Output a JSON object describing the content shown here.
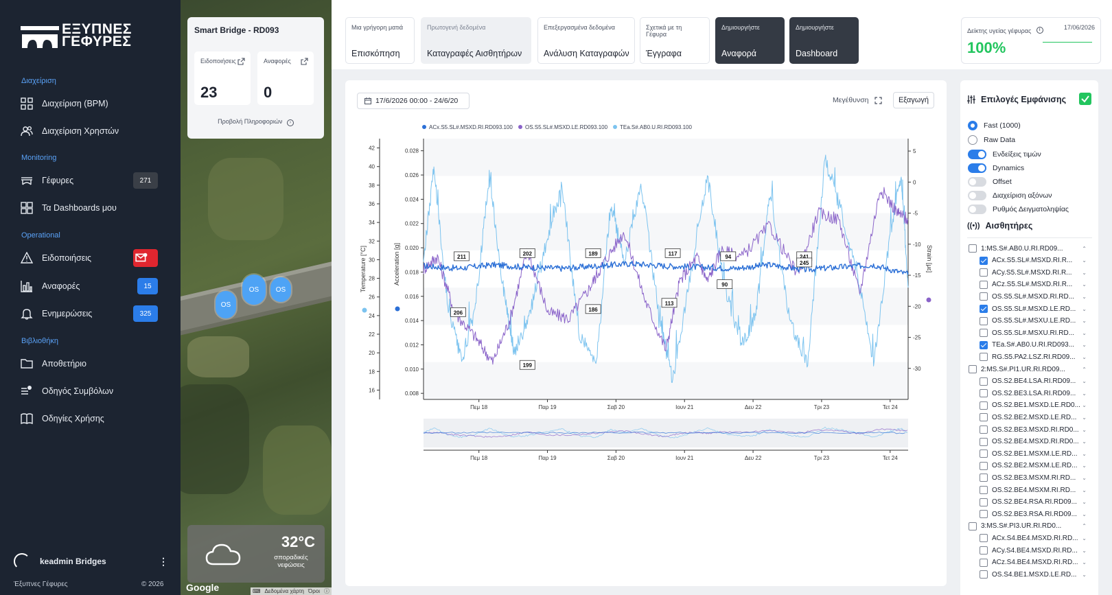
{
  "brand": {
    "logo_text_top": "ΕΞΥΠΝΕΣ",
    "logo_text_bottom": "ΓΕΦΥΡΕΣ",
    "footer_name": "Έξυπνες Γέφυρες",
    "footer_year": "© 2026"
  },
  "sidebar": {
    "sections": [
      {
        "label": "Διαχείριση"
      },
      {
        "label": "Monitoring"
      },
      {
        "label": "Operational"
      },
      {
        "label": "Βιβλιοθήκη"
      }
    ],
    "items": [
      {
        "label": "Διαχείριση (BPM)",
        "icon": "grid-icon"
      },
      {
        "label": "Διαχείριση Χρηστών",
        "icon": "users-icon"
      },
      {
        "label": "Γέφυρες",
        "icon": "bridge-icon",
        "badge": "271",
        "badge_color": "#3a3f47"
      },
      {
        "label": "Τα Dashboards μου",
        "icon": "dashboard-icon"
      },
      {
        "label": "Ειδοποιήσεις",
        "icon": "warning-icon",
        "badge_icon": "mail-icon",
        "badge_color": "#e0262f"
      },
      {
        "label": "Αναφορές",
        "icon": "bar-chart-icon",
        "badge": "15",
        "badge_color": "#2b7de9"
      },
      {
        "label": "Ενημερώσεις",
        "icon": "bell-icon",
        "badge": "325",
        "badge_color": "#2b7de9"
      },
      {
        "label": "Αποθετήριο",
        "icon": "folder-icon"
      },
      {
        "label": "Οδηγός Συμβόλων",
        "icon": "list-icon"
      },
      {
        "label": "Οδηγίες Χρήσης",
        "icon": "book-icon"
      }
    ],
    "user": "keadmin Bridges"
  },
  "map": {
    "card_title": "Smart Bridge - RD093",
    "notifications_label": "Ειδοποιήσεις",
    "notifications_value": "23",
    "reports_label": "Αναφορές",
    "reports_value": "0",
    "info_link": "Προβολή Πληροφοριών",
    "pins": [
      "OS",
      "OS",
      "OS"
    ],
    "weather_temp": "32°C",
    "weather_desc": "σποραδικές νεφώσεις",
    "google": "Google",
    "attribution": [
      "Δεδομένα χάρτη",
      "Όροι"
    ]
  },
  "tabs": [
    {
      "small": "Μια γρήγορη ματιά",
      "label": "Επισκόπηση",
      "style": "plain"
    },
    {
      "small": "Πρωτογενή δεδομένα",
      "label": "Καταγραφές Αισθητήρων",
      "style": "grey"
    },
    {
      "small": "Επεξεργασμένα δεδομένα",
      "label": "Ανάλυση Καταγραφών",
      "style": "plain"
    },
    {
      "small": "Σχετικά με τη Γέφυρα",
      "label": "Έγγραφα",
      "style": "plain"
    },
    {
      "small": "Δημιουργήστε",
      "label": "Αναφορά",
      "style": "dark"
    },
    {
      "small": "Δημιουργήστε",
      "label": "Dashboard",
      "style": "dark"
    }
  ],
  "health": {
    "label": "Δείκτης υγείας γέφυρας",
    "date": "17/06/2026",
    "value": "100%",
    "color": "#22c55e"
  },
  "toolbar": {
    "date_range": "17/6/2026 00:00 - 24/6/20",
    "zoom_label": "Μεγέθυνση",
    "export_label": "Εξαγωγή"
  },
  "chart_data": {
    "type": "line",
    "legend": [
      "ACx.S5.SL#.MSXD.RI.RD093.100",
      "OS.S5.SL#.MSXD.LE.RD093.100",
      "TEa.S#.AB0.U.RI.RD093.100"
    ],
    "colors": [
      "#2b6fd6",
      "#8a63c9",
      "#7cc3ef"
    ],
    "x_ticks": [
      "Πεμ 18",
      "Παρ 19",
      "Σαβ 20",
      "Ιουν 21",
      "Δευ 22",
      "Τρι 23",
      "Τετ 24"
    ],
    "axes": {
      "temperature": {
        "label": "Temperature [°C]",
        "ticks": [
          "42",
          "40",
          "38",
          "36",
          "34",
          "32",
          "30",
          "28",
          "26",
          "24",
          "22",
          "20",
          "18",
          "16"
        ],
        "range": [
          15,
          43
        ]
      },
      "acceleration": {
        "label": "Acceleration [g]",
        "ticks": [
          "0.028",
          "0.026",
          "0.024",
          "0.022",
          "0.020",
          "0.018",
          "0.016",
          "0.014",
          "0.012",
          "0.010",
          "0.008"
        ],
        "range": [
          0.0075,
          0.029
        ]
      },
      "strain": {
        "label": "Strain [με]",
        "ticks": [
          "5",
          "0",
          "-5",
          "-10",
          "-15",
          "-20",
          "-25",
          "-30"
        ],
        "range": [
          -35,
          7
        ]
      }
    },
    "series": [
      {
        "name": "ACx.S5.SL#.MSXD.RI.RD093.100",
        "axis": "acceleration",
        "x": [
          0,
          0.5,
          1,
          1.5,
          2,
          2.5,
          3,
          3.5,
          4,
          4.5,
          5,
          5.5,
          6,
          6.5,
          7
        ],
        "values": [
          0.0185,
          0.0183,
          0.0186,
          0.0184,
          0.0183,
          0.0185,
          0.0187,
          0.0185,
          0.0184,
          0.0183,
          0.0186,
          0.0182,
          0.0184,
          0.0186,
          0.0178
        ]
      },
      {
        "name": "OS.S5.SL#.MSXD.LE.RD093.100",
        "axis": "strain",
        "x": [
          0,
          0.2,
          0.45,
          0.75,
          1,
          1.25,
          1.5,
          1.8,
          2.1,
          2.4,
          2.6,
          2.9,
          3.2,
          3.5,
          3.7,
          3.95,
          4.1,
          4.3,
          4.6,
          5,
          5.4,
          5.7,
          6,
          6.3,
          6.6,
          6.85,
          7
        ],
        "values": [
          -14,
          -12,
          -21,
          -25,
          -29,
          -22,
          -11,
          -21,
          -22,
          -17,
          -13,
          -8,
          -19,
          -27,
          -16,
          -12,
          -16,
          -11,
          -12,
          -7,
          -15,
          -5,
          -6,
          -18,
          -1,
          -5,
          -6
        ]
      },
      {
        "name": "TEa.S#.AB0.U.RI.RD093.100",
        "axis": "temperature",
        "x": [
          0,
          0.15,
          0.35,
          0.55,
          0.75,
          0.95,
          1.15,
          1.3,
          1.5,
          1.75,
          2,
          2.25,
          2.5,
          2.7,
          2.9,
          3.15,
          3.4,
          3.6,
          3.85,
          4.1,
          4.35,
          4.6,
          4.8,
          5,
          5.3,
          5.55,
          5.8,
          6,
          6.25,
          6.5,
          6.75,
          6.9,
          7
        ],
        "values": [
          30,
          40,
          25,
          19,
          25,
          39,
          27,
          20,
          23,
          31,
          38,
          22,
          19,
          36,
          30,
          38,
          24,
          17,
          28,
          39,
          27,
          21,
          24,
          37,
          23,
          19,
          41,
          36,
          29,
          19,
          33,
          39,
          27
        ]
      }
    ],
    "data_labels": [
      {
        "x": 0.55,
        "y": -12,
        "axis": "strain",
        "text": "211"
      },
      {
        "x": 1.5,
        "y": -11.5,
        "axis": "strain",
        "text": "202"
      },
      {
        "x": 2.45,
        "y": -11.5,
        "axis": "strain",
        "text": "189"
      },
      {
        "x": 3.6,
        "y": -11.5,
        "axis": "strain",
        "text": "117"
      },
      {
        "x": 4.4,
        "y": -12,
        "axis": "strain",
        "text": "94"
      },
      {
        "x": 5.5,
        "y": -12,
        "axis": "strain",
        "text": "241"
      },
      {
        "x": 5.5,
        "y": -13,
        "axis": "strain",
        "text": "245"
      },
      {
        "x": 0.5,
        "y": -21,
        "axis": "strain",
        "text": "206"
      },
      {
        "x": 1.5,
        "y": -29.5,
        "axis": "strain",
        "text": "199"
      },
      {
        "x": 2.45,
        "y": -20.5,
        "axis": "strain",
        "text": "186"
      },
      {
        "x": 3.55,
        "y": -19.5,
        "axis": "strain",
        "text": "113"
      },
      {
        "x": 4.35,
        "y": -16.5,
        "axis": "strain",
        "text": "90"
      }
    ]
  },
  "panel": {
    "title": "Επιλογές Εμφάνισης",
    "options": [
      {
        "label": "Fast (1000)",
        "kind": "radio",
        "on": true
      },
      {
        "label": "Raw Data",
        "kind": "radio",
        "on": false
      },
      {
        "label": "Ενδείξεις τιμών",
        "kind": "toggle",
        "on": true
      },
      {
        "label": "Dynamics",
        "kind": "toggle",
        "on": true
      },
      {
        "label": "Offset",
        "kind": "toggle",
        "on": false
      },
      {
        "label": "Διαχείριση αξόνων",
        "kind": "toggle",
        "on": false
      },
      {
        "label": "Ρυθμός Δειγματοληψίας",
        "kind": "toggle",
        "on": false
      }
    ],
    "sensors_title": "Αισθητήρες",
    "sensors": [
      {
        "label": "1:MS.S#.AB0.U.RI.RD09...",
        "group": true,
        "checked": false
      },
      {
        "label": "ACx.S5.SL#.MSXD.RI.R...",
        "group": false,
        "checked": true
      },
      {
        "label": "ACy.S5.SL#.MSXD.RI.R...",
        "group": false,
        "checked": false
      },
      {
        "label": "ACz.S5.SL#.MSXD.RI.R...",
        "group": false,
        "checked": false
      },
      {
        "label": "OS.S5.SL#.MSXD.RI.RD...",
        "group": false,
        "checked": false
      },
      {
        "label": "OS.S5.SL#.MSXD.LE.RD...",
        "group": false,
        "checked": true
      },
      {
        "label": "OS.S5.SL#.MSXU.LE.RD...",
        "group": false,
        "checked": false
      },
      {
        "label": "OS.S5.SL#.MSXU.RI.RD...",
        "group": false,
        "checked": false
      },
      {
        "label": "TEa.S#.AB0.U.RI.RD093...",
        "group": false,
        "checked": true
      },
      {
        "label": "RG.S5.PA2.LSZ.RI.RD09...",
        "group": false,
        "checked": false
      },
      {
        "label": "2:MS.S#.PI1.UR.RI.RD09...",
        "group": true,
        "checked": false
      },
      {
        "label": "OS.S2.BE4.LSA.RI.RD09...",
        "group": false,
        "checked": false
      },
      {
        "label": "OS.S2.BE3.LSA.RI.RD09...",
        "group": false,
        "checked": false
      },
      {
        "label": "OS.S2.BE1.MSXD.LE.RD0...",
        "group": false,
        "checked": false
      },
      {
        "label": "OS.S2.BE2.MSXD.LE.RD...",
        "group": false,
        "checked": false
      },
      {
        "label": "OS.S2.BE3.MSXD.RI.RD0...",
        "group": false,
        "checked": false
      },
      {
        "label": "OS.S2.BE4.MSXD.RI.RD0...",
        "group": false,
        "checked": false
      },
      {
        "label": "OS.S2.BE1.MSXM.LE.RD...",
        "group": false,
        "checked": false
      },
      {
        "label": "OS.S2.BE2.MSXM.LE.RD...",
        "group": false,
        "checked": false
      },
      {
        "label": "OS.S2.BE3.MSXM.RI.RD...",
        "group": false,
        "checked": false
      },
      {
        "label": "OS.S2.BE4.MSXM.RI.RD...",
        "group": false,
        "checked": false
      },
      {
        "label": "OS.S2.BE4.RSA.RI.RD09...",
        "group": false,
        "checked": false
      },
      {
        "label": "OS.S2.BE3.RSA.RI.RD09...",
        "group": false,
        "checked": false
      },
      {
        "label": "3:MS.S#.PI3.UR.RI.RD0...",
        "group": true,
        "checked": false
      },
      {
        "label": "ACx.S4.BE4.MSXD.RI.RD...",
        "group": false,
        "checked": false
      },
      {
        "label": "ACy.S4.BE4.MSXD.RI.RD...",
        "group": false,
        "checked": false
      },
      {
        "label": "ACz.S4.BE4.MSXD.RI.RD...",
        "group": false,
        "checked": false
      },
      {
        "label": "OS.S4.BE1.MSXD.LE.RD...",
        "group": false,
        "checked": false
      }
    ]
  }
}
